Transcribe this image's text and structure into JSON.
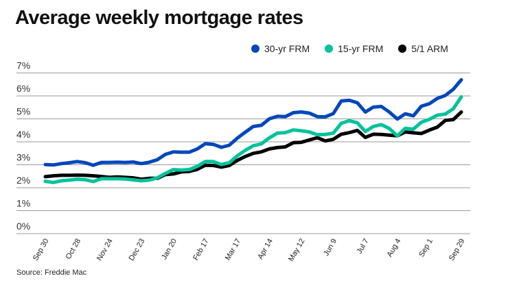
{
  "chart_data": {
    "type": "line",
    "title": "Average weekly mortgage rates",
    "source": "Source: Freddie Mac",
    "xlabel": "",
    "ylabel": "",
    "ylim": [
      0,
      7
    ],
    "y_ticks": [
      "0%",
      "1%",
      "2%",
      "3%",
      "4%",
      "5%",
      "6%",
      "7%"
    ],
    "x_tick_labels": [
      "Sep 30",
      "Oct 28",
      "Nov 24",
      "Dec 23",
      "Jan 20",
      "Feb 17",
      "Mar 17",
      "Apr 14",
      "May 12",
      "Jun 9",
      "Jul 7",
      "Aug 4",
      "Sep 1",
      "Sep 29"
    ],
    "x_tick_every": 4,
    "grid": true,
    "legend_position": "top-right",
    "series": [
      {
        "name": "30-yr FRM",
        "color": "#0047BB",
        "values": [
          3.01,
          2.99,
          3.05,
          3.09,
          3.14,
          3.09,
          2.98,
          3.1,
          3.1,
          3.11,
          3.1,
          3.12,
          3.05,
          3.11,
          3.22,
          3.45,
          3.56,
          3.55,
          3.55,
          3.69,
          3.92,
          3.89,
          3.76,
          3.85,
          4.16,
          4.42,
          4.67,
          4.72,
          5.0,
          5.11,
          5.1,
          5.27,
          5.3,
          5.25,
          5.1,
          5.09,
          5.23,
          5.78,
          5.81,
          5.7,
          5.3,
          5.51,
          5.54,
          5.3,
          4.99,
          5.22,
          5.13,
          5.55,
          5.66,
          5.89,
          6.02,
          6.29,
          6.7
        ]
      },
      {
        "name": "15-yr FRM",
        "color": "#00C29A",
        "values": [
          2.28,
          2.23,
          2.3,
          2.33,
          2.37,
          2.35,
          2.27,
          2.39,
          2.39,
          2.39,
          2.38,
          2.34,
          2.3,
          2.33,
          2.43,
          2.62,
          2.79,
          2.77,
          2.79,
          2.93,
          3.14,
          3.14,
          3.01,
          3.09,
          3.39,
          3.63,
          3.83,
          3.91,
          4.17,
          4.38,
          4.4,
          4.52,
          4.48,
          4.43,
          4.31,
          4.32,
          4.38,
          4.81,
          4.92,
          4.83,
          4.45,
          4.67,
          4.75,
          4.58,
          4.26,
          4.59,
          4.55,
          4.85,
          4.98,
          5.16,
          5.21,
          5.44,
          5.96
        ]
      },
      {
        "name": "5/1 ARM",
        "color": "#000000",
        "values": [
          2.48,
          2.52,
          2.54,
          2.54,
          2.55,
          2.54,
          2.52,
          2.49,
          2.45,
          2.47,
          2.45,
          2.43,
          2.37,
          2.41,
          2.41,
          2.57,
          2.6,
          2.69,
          2.71,
          2.8,
          2.98,
          2.97,
          2.9,
          2.97,
          3.19,
          3.36,
          3.5,
          3.56,
          3.69,
          3.75,
          3.78,
          3.96,
          3.98,
          4.08,
          4.18,
          4.04,
          4.11,
          4.33,
          4.4,
          4.5,
          4.19,
          4.33,
          4.32,
          4.29,
          4.26,
          4.43,
          4.39,
          4.36,
          4.51,
          4.64,
          4.93,
          4.97,
          5.3
        ]
      }
    ]
  }
}
